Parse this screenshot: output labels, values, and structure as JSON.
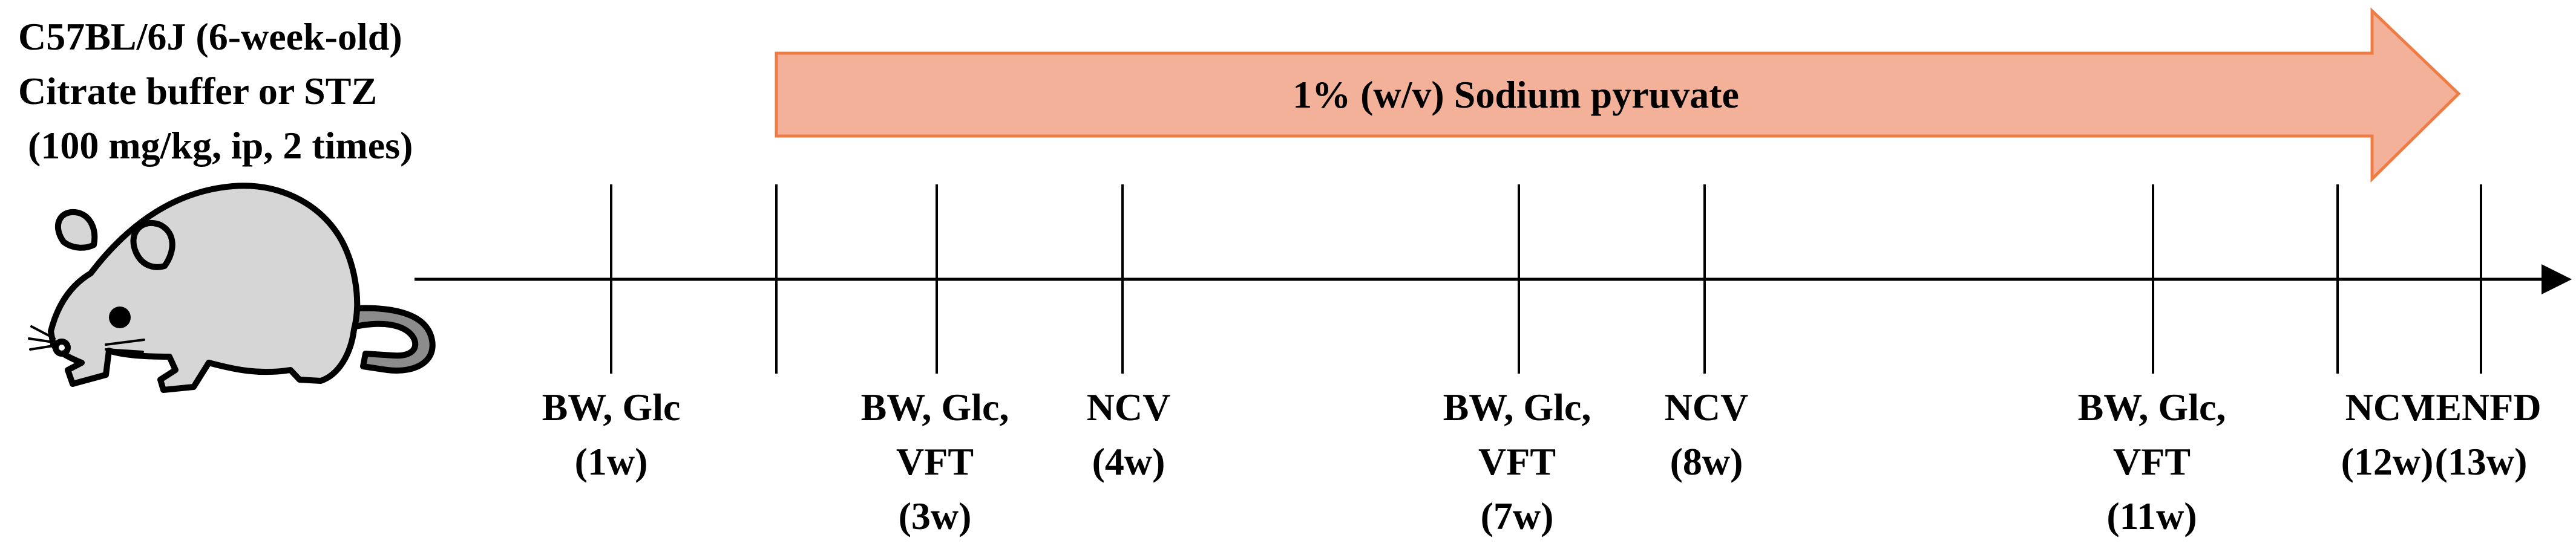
{
  "treatment": {
    "strain": "C57BL/6J (6-week-old)",
    "injection": "Citrate buffer or STZ",
    "dose": "(100 mg/kg, ip, 2 times)"
  },
  "supplement": {
    "label": "1% (w/v) Sodium pyruvate",
    "fill_color": "#f4b19a",
    "stroke_color": "#ee7c45"
  },
  "timeline": {
    "events": [
      {
        "lines": [
          "BW, Glc",
          "(1w)"
        ]
      },
      {
        "lines": [
          "BW, Glc,",
          "VFT",
          "(3w)"
        ]
      },
      {
        "lines": [
          "NCV",
          "(4w)"
        ]
      },
      {
        "lines": [
          "BW, Glc,",
          "VFT",
          "(7w)"
        ]
      },
      {
        "lines": [
          "NCV",
          "(8w)"
        ]
      },
      {
        "lines": [
          "BW, Glc,",
          "VFT",
          "(11w)"
        ]
      },
      {
        "lines": [
          "NCV",
          "(12w)"
        ]
      },
      {
        "lines": [
          "IENFD",
          "(13w)"
        ]
      }
    ]
  },
  "icons": {
    "animal": "mouse-icon"
  }
}
